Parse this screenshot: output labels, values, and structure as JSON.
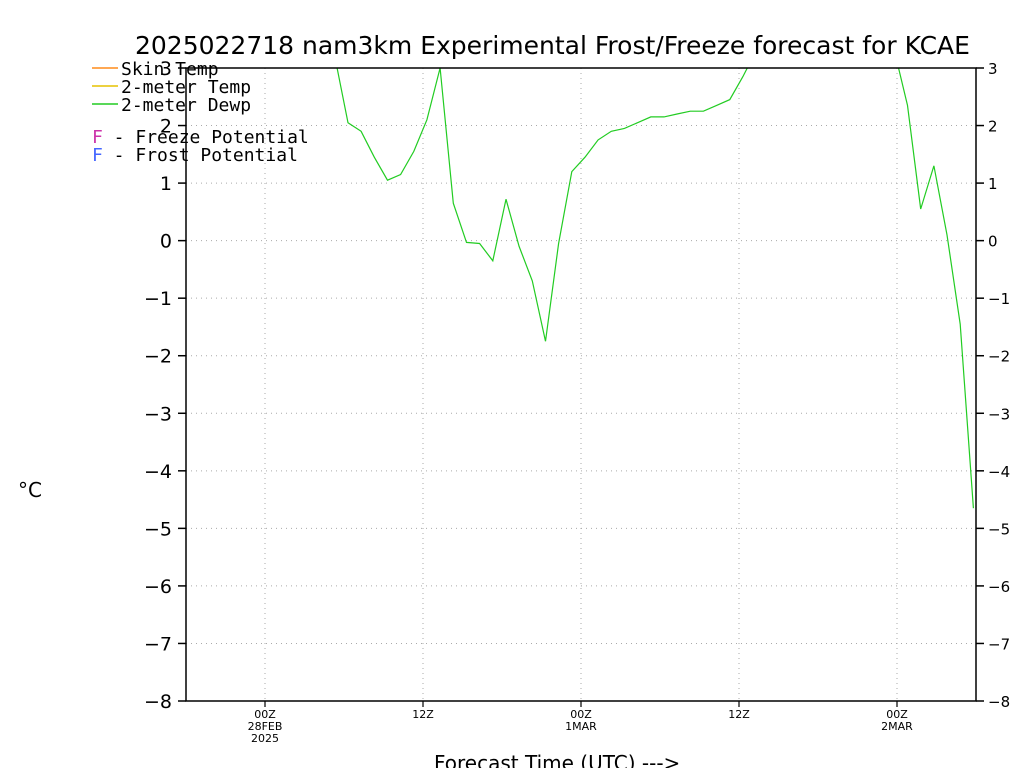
{
  "chart_data": {
    "type": "line",
    "title": "2025022718 nam3km Experimental Frost/Freeze forecast for KCAE",
    "xlabel": "Forecast Time (UTC) --->",
    "ylabel": "°C",
    "ylim": [
      -8,
      3
    ],
    "yticks": [
      3,
      2,
      1,
      0,
      -1,
      -2,
      -3,
      -4,
      -5,
      -6,
      -7,
      -8
    ],
    "xlim_hours_from_init": [
      0,
      60
    ],
    "x_ticks": [
      {
        "hour": 6,
        "lines": [
          "00Z",
          "28FEB",
          "2025"
        ]
      },
      {
        "hour": 18,
        "lines": [
          "12Z"
        ]
      },
      {
        "hour": 30,
        "lines": [
          "00Z",
          "1MAR"
        ]
      },
      {
        "hour": 42,
        "lines": [
          "12Z"
        ]
      },
      {
        "hour": 54,
        "lines": [
          "00Z",
          "2MAR"
        ]
      }
    ],
    "grid": true,
    "legend": {
      "position": "top-left",
      "series": [
        {
          "label": "Skin Temp",
          "color": "#ff8c1a"
        },
        {
          "label": "2-meter Temp",
          "color": "#e6c200"
        },
        {
          "label": "2-meter Dewp",
          "color": "#22cc22"
        }
      ],
      "notes": [
        {
          "symbol": "F",
          "text": " - Freeze Potential",
          "color": "#cc33aa"
        },
        {
          "symbol": "F",
          "text": " - Frost Potential",
          "color": "#4466ff"
        }
      ]
    },
    "series": [
      {
        "name": "2-meter Dewp",
        "color": "#22cc22",
        "points": [
          [
            11.3,
            3.2
          ],
          [
            12.3,
            2.05
          ],
          [
            13.3,
            1.9
          ],
          [
            14.3,
            1.45
          ],
          [
            15.3,
            1.05
          ],
          [
            16.3,
            1.15
          ],
          [
            17.3,
            1.55
          ],
          [
            18.3,
            2.1
          ],
          [
            19.3,
            3.0
          ],
          [
            20.3,
            0.65
          ],
          [
            21.3,
            -0.03
          ],
          [
            22.3,
            -0.05
          ],
          [
            23.3,
            -0.35
          ],
          [
            24.3,
            0.72
          ],
          [
            25.3,
            -0.1
          ],
          [
            26.3,
            -0.7
          ],
          [
            27.3,
            -1.75
          ],
          [
            28.3,
            -0.05
          ],
          [
            29.3,
            1.2
          ],
          [
            30.3,
            1.45
          ],
          [
            31.3,
            1.75
          ],
          [
            32.3,
            1.9
          ],
          [
            33.3,
            1.95
          ],
          [
            34.3,
            2.05
          ],
          [
            35.3,
            2.15
          ],
          [
            36.3,
            2.15
          ],
          [
            37.3,
            2.2
          ],
          [
            38.3,
            2.25
          ],
          [
            39.3,
            2.25
          ],
          [
            40.3,
            2.35
          ],
          [
            41.3,
            2.45
          ],
          [
            42.3,
            2.85
          ],
          [
            43.3,
            3.3
          ],
          null,
          [
            53.8,
            3.3
          ],
          [
            54.8,
            2.35
          ],
          [
            55.8,
            0.55
          ],
          [
            56.8,
            1.3
          ],
          [
            57.8,
            0.1
          ],
          [
            58.8,
            -1.45
          ],
          [
            59.8,
            -4.65
          ]
        ]
      }
    ]
  }
}
